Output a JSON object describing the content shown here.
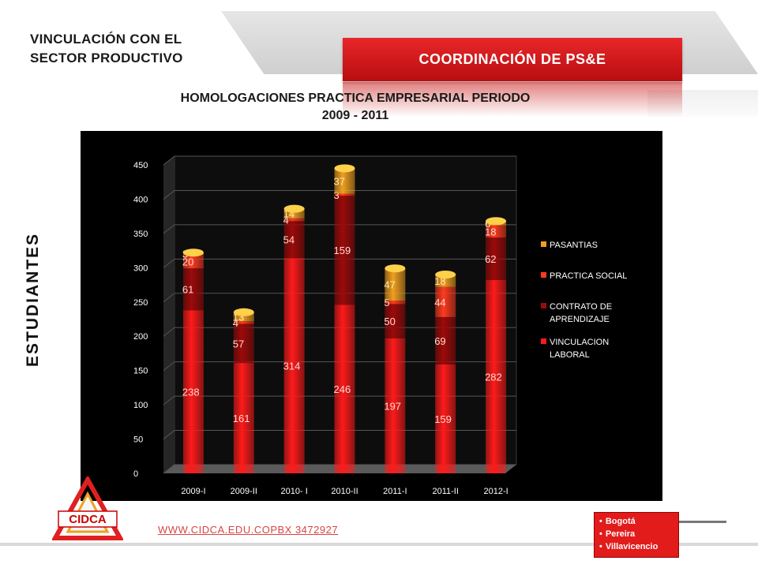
{
  "header": {
    "left_line1": "VINCULACIÓN CON EL",
    "left_line2": "SECTOR PRODUCTIVO",
    "coordination": "COORDINACIÓN  DE  PS&E"
  },
  "y_axis_title": "ESTUDIANTES",
  "chart_data": {
    "type": "bar",
    "stacked": true,
    "title_line1": "HOMOLOGACIONES PRACTICA EMPRESARIAL PERIODO",
    "title_line2": "2009 - 2011",
    "categories": [
      "2009-I",
      "2009-II",
      "2010- I",
      "2010-II",
      "2011-I",
      "2011-II",
      "2012-I"
    ],
    "ylim": [
      0,
      450
    ],
    "yticks": [
      "0",
      "50",
      "100",
      "150",
      "200",
      "250",
      "300",
      "350",
      "400",
      "450"
    ],
    "legend_position": "right",
    "grid": true,
    "series": [
      {
        "name": "VINCULACION LABORAL",
        "color": "#ff1a1a",
        "values": [
          238,
          161,
          314,
          246,
          197,
          159,
          282
        ]
      },
      {
        "name": "CONTRATO DE APRENDIZAJE",
        "color": "#9e0a0a",
        "values": [
          61,
          57,
          54,
          159,
          50,
          69,
          62
        ]
      },
      {
        "name": "PRACTICA SOCIAL",
        "color": "#ff3b1f",
        "values": [
          20,
          4,
          4,
          3,
          5,
          44,
          18
        ]
      },
      {
        "name": "PASANTIAS",
        "color": "#f0a020",
        "values": [
          3,
          13,
          14,
          37,
          47,
          18,
          6
        ]
      }
    ]
  },
  "footer": {
    "url": "WWW.CIDCA.EDU.COPBX  3472927",
    "cities": [
      "Bogotá",
      "Pereira",
      "Villavicencio"
    ],
    "logo_text": "CIDCA"
  }
}
